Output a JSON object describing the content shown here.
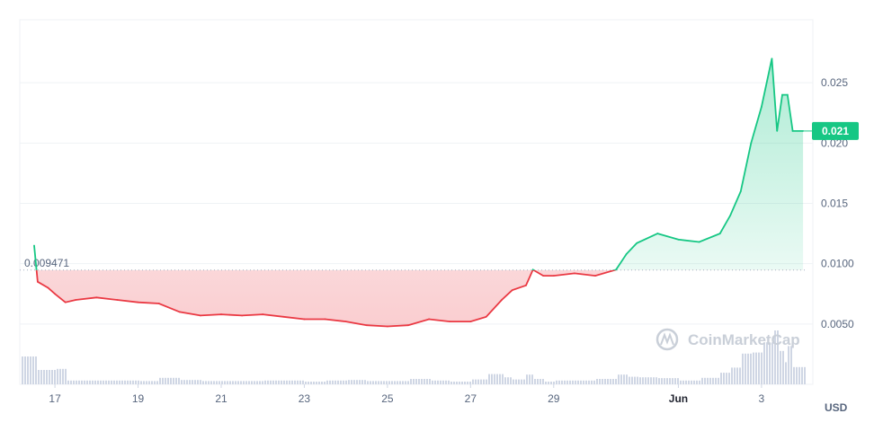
{
  "chart_data": {
    "type": "line",
    "currency": "USD",
    "baseline": {
      "value": 0.009471,
      "label": "0.009471"
    },
    "current_price": {
      "value": 0.021,
      "label": "0.021"
    },
    "watermark": "CoinMarketCap",
    "colors": {
      "up": "#16c784",
      "down": "#ea3943",
      "grid": "#eff2f5",
      "volume": "#cfd6e4"
    },
    "x_range": [
      "2024-05-16T12:00",
      "2024-06-03T12:00"
    ],
    "ylim": [
      0.0,
      0.03
    ],
    "y_ticks": [
      {
        "value": 0.005,
        "label": "0.0050"
      },
      {
        "value": 0.01,
        "label": "0.0100"
      },
      {
        "value": 0.015,
        "label": "0.015"
      },
      {
        "value": 0.02,
        "label": "0.020"
      },
      {
        "value": 0.025,
        "label": "0.025"
      }
    ],
    "x_ticks": [
      {
        "date": "2024-05-17",
        "label": "17",
        "bold": false
      },
      {
        "date": "2024-05-19",
        "label": "19",
        "bold": false
      },
      {
        "date": "2024-05-21",
        "label": "21",
        "bold": false
      },
      {
        "date": "2024-05-23",
        "label": "23",
        "bold": false
      },
      {
        "date": "2024-05-25",
        "label": "25",
        "bold": false
      },
      {
        "date": "2024-05-27",
        "label": "27",
        "bold": false
      },
      {
        "date": "2024-05-29",
        "label": "29",
        "bold": false
      },
      {
        "date": "2024-06-01",
        "label": "Jun",
        "bold": true
      },
      {
        "date": "2024-06-03",
        "label": "3",
        "bold": false
      }
    ],
    "series": [
      {
        "values": [
          [
            "2024-05-16T12:00",
            0.0115
          ],
          [
            "2024-05-16T14:00",
            0.0085
          ],
          [
            "2024-05-16T20:00",
            0.008
          ],
          [
            "2024-05-17T00:00",
            0.0075
          ],
          [
            "2024-05-17T06:00",
            0.0068
          ],
          [
            "2024-05-17T12:00",
            0.007
          ],
          [
            "2024-05-18T00:00",
            0.0072
          ],
          [
            "2024-05-18T12:00",
            0.007
          ],
          [
            "2024-05-19T00:00",
            0.0068
          ],
          [
            "2024-05-19T12:00",
            0.0067
          ],
          [
            "2024-05-20T00:00",
            0.006
          ],
          [
            "2024-05-20T12:00",
            0.0057
          ],
          [
            "2024-05-21T00:00",
            0.0058
          ],
          [
            "2024-05-21T12:00",
            0.0057
          ],
          [
            "2024-05-22T00:00",
            0.0058
          ],
          [
            "2024-05-22T12:00",
            0.0056
          ],
          [
            "2024-05-23T00:00",
            0.0054
          ],
          [
            "2024-05-23T12:00",
            0.0054
          ],
          [
            "2024-05-24T00:00",
            0.0052
          ],
          [
            "2024-05-24T12:00",
            0.0049
          ],
          [
            "2024-05-25T00:00",
            0.0048
          ],
          [
            "2024-05-25T12:00",
            0.0049
          ],
          [
            "2024-05-26T00:00",
            0.0054
          ],
          [
            "2024-05-26T12:00",
            0.0052
          ],
          [
            "2024-05-27T00:00",
            0.0052
          ],
          [
            "2024-05-27T09:00",
            0.0056
          ],
          [
            "2024-05-27T18:00",
            0.007
          ],
          [
            "2024-05-28T00:00",
            0.0078
          ],
          [
            "2024-05-28T08:00",
            0.0082
          ],
          [
            "2024-05-28T12:00",
            0.0095
          ],
          [
            "2024-05-28T18:00",
            0.009
          ],
          [
            "2024-05-29T00:00",
            0.009
          ],
          [
            "2024-05-29T12:00",
            0.0092
          ],
          [
            "2024-05-30T00:00",
            0.009
          ],
          [
            "2024-05-30T12:00",
            0.0095
          ],
          [
            "2024-05-30T18:00",
            0.0108
          ],
          [
            "2024-05-31T00:00",
            0.0117
          ],
          [
            "2024-05-31T12:00",
            0.0125
          ],
          [
            "2024-06-01T00:00",
            0.012
          ],
          [
            "2024-06-01T12:00",
            0.0118
          ],
          [
            "2024-06-02T00:00",
            0.0125
          ],
          [
            "2024-06-02T06:00",
            0.014
          ],
          [
            "2024-06-02T12:00",
            0.016
          ],
          [
            "2024-06-02T18:00",
            0.02
          ],
          [
            "2024-06-03T00:00",
            0.023
          ],
          [
            "2024-06-03T06:00",
            0.027
          ],
          [
            "2024-06-03T09:00",
            0.021
          ],
          [
            "2024-06-03T12:00",
            0.024
          ],
          [
            "2024-06-03T15:00",
            0.024
          ],
          [
            "2024-06-03T18:00",
            0.021
          ],
          [
            "2024-06-04T00:00",
            0.021
          ]
        ]
      }
    ]
  }
}
